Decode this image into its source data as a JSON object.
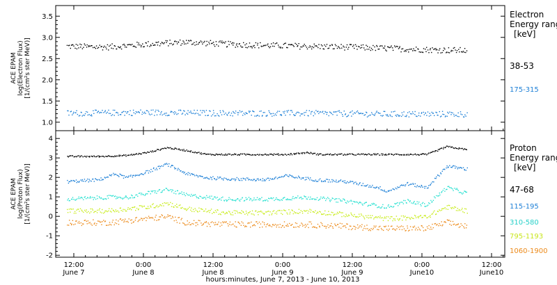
{
  "chart_data": [
    {
      "type": "scatter",
      "panel": "electron",
      "ylabel_lines": [
        "ACE EPAM",
        "log(Electron Flux)",
        "[1/(cm²s ster MeV)]"
      ],
      "ylim": [
        0.8,
        3.75
      ],
      "yticks": [
        "1.0",
        "1.5",
        "2.0",
        "2.5",
        "3.0",
        "3.5"
      ],
      "legend_title": [
        "Electron",
        "Energy ranges"
      ],
      "legend_unit": "[keV]",
      "series": [
        {
          "name": "38-53",
          "color": "#000000",
          "level": 2.8,
          "noise": 0.07,
          "x": [
            0,
            0.1,
            0.2,
            0.3,
            0.4,
            0.5,
            0.6,
            0.7,
            0.8,
            0.9,
            1.0
          ],
          "y": [
            2.8,
            2.78,
            2.85,
            2.9,
            2.85,
            2.82,
            2.8,
            2.78,
            2.75,
            2.72,
            2.7
          ]
        },
        {
          "name": "175-315",
          "color": "#1c7fd6",
          "level": 1.22,
          "noise": 0.07,
          "x": [
            0,
            0.2,
            0.4,
            0.6,
            0.8,
            1.0
          ],
          "y": [
            1.22,
            1.24,
            1.22,
            1.22,
            1.2,
            1.2
          ]
        }
      ]
    },
    {
      "type": "scatter",
      "panel": "proton",
      "ylabel_lines": [
        "ACE EPAM",
        "log(Proton Flux)",
        "[1/(cm²s ster MeV)]"
      ],
      "ylim": [
        -2.1,
        4.4
      ],
      "yticks": [
        "-2",
        "-1",
        "0",
        "1",
        "2",
        "3",
        "4"
      ],
      "legend_title": [
        "Proton",
        "Energy ranges"
      ],
      "legend_unit": "[keV]",
      "series": [
        {
          "name": "47-68",
          "color": "#000000",
          "noise": 0.04,
          "x": [
            0,
            0.08,
            0.15,
            0.2,
            0.25,
            0.3,
            0.35,
            0.4,
            0.5,
            0.55,
            0.6,
            0.63,
            0.7,
            0.8,
            0.9,
            0.95,
            1.0
          ],
          "y": [
            3.1,
            3.1,
            3.15,
            3.3,
            3.55,
            3.4,
            3.2,
            3.2,
            3.2,
            3.2,
            3.3,
            3.2,
            3.2,
            3.2,
            3.2,
            3.6,
            3.45
          ]
        },
        {
          "name": "115-195",
          "color": "#1c7fd6",
          "noise": 0.08,
          "x": [
            0,
            0.08,
            0.12,
            0.15,
            0.2,
            0.25,
            0.3,
            0.35,
            0.4,
            0.5,
            0.55,
            0.62,
            0.7,
            0.78,
            0.8,
            0.85,
            0.9,
            0.95,
            1.0
          ],
          "y": [
            1.8,
            1.9,
            2.2,
            2.0,
            2.3,
            2.7,
            2.2,
            2.0,
            1.95,
            1.9,
            2.1,
            1.9,
            1.8,
            1.5,
            1.3,
            1.7,
            1.5,
            2.6,
            2.45
          ]
        },
        {
          "name": "310-580",
          "color": "#25e0d0",
          "noise": 0.1,
          "x": [
            0,
            0.1,
            0.15,
            0.2,
            0.25,
            0.3,
            0.4,
            0.5,
            0.6,
            0.7,
            0.8,
            0.85,
            0.9,
            0.95,
            1.0
          ],
          "y": [
            0.9,
            1.0,
            1.0,
            1.2,
            1.4,
            1.1,
            0.9,
            0.9,
            1.0,
            0.8,
            0.5,
            0.8,
            0.6,
            1.5,
            1.2
          ]
        },
        {
          "name": "795-1193",
          "color": "#c8ec1a",
          "noise": 0.12,
          "x": [
            0,
            0.1,
            0.2,
            0.25,
            0.3,
            0.4,
            0.5,
            0.6,
            0.7,
            0.8,
            0.9,
            0.95,
            1.0
          ],
          "y": [
            0.3,
            0.3,
            0.5,
            0.7,
            0.4,
            0.2,
            0.2,
            0.3,
            0.1,
            -0.1,
            0.0,
            0.5,
            0.3
          ]
        },
        {
          "name": "1060-1900",
          "color": "#ec8a1a",
          "noise": 0.15,
          "x": [
            0,
            0.1,
            0.2,
            0.25,
            0.3,
            0.4,
            0.5,
            0.6,
            0.7,
            0.8,
            0.9,
            0.95,
            1.0
          ],
          "y": [
            -0.3,
            -0.3,
            -0.1,
            0.0,
            -0.3,
            -0.4,
            -0.4,
            -0.4,
            -0.5,
            -0.6,
            -0.6,
            -0.3,
            -0.5
          ]
        }
      ]
    }
  ],
  "x_axis": {
    "ticks": [
      {
        "time": "12:00",
        "date": "June 7"
      },
      {
        "time": "0:00",
        "date": "June 8"
      },
      {
        "time": "12:00",
        "date": "June 8"
      },
      {
        "time": "0:00",
        "date": "June 9"
      },
      {
        "time": "12:00",
        "date": "June 9"
      },
      {
        "time": "0:00",
        "date": "June10"
      },
      {
        "time": "12:00",
        "date": "June10"
      }
    ],
    "label": "hours:minutes, June  7, 2013 - June 10, 2013"
  }
}
